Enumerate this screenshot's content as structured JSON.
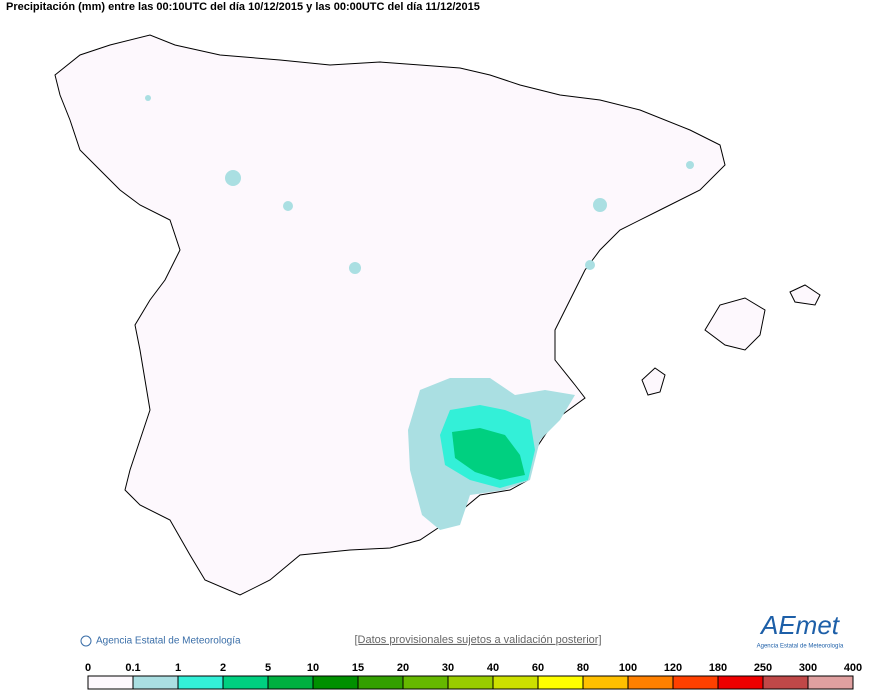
{
  "header": {
    "title": "Precipitación (mm) entre las 00:10UTC del día 10/12/2015 y las 00:00UTC del día 11/12/2015"
  },
  "footer": {
    "copyright": "Agencia Estatal de Meteorología",
    "note": "[Datos provisionales sujetos a validación posterior]"
  },
  "logo": {
    "name": "AEmet",
    "subtitle": "Agencia Estatal de Meteorología"
  },
  "legend": {
    "ticks": [
      0,
      0.1,
      1,
      2,
      5,
      10,
      15,
      20,
      30,
      40,
      60,
      80,
      100,
      120,
      180,
      250,
      300,
      400
    ],
    "colors": [
      "#fdf8fd",
      "#aadfe2",
      "#33f0d8",
      "#00d080",
      "#00b040",
      "#009000",
      "#33a000",
      "#66b800",
      "#99cc00",
      "#cce000",
      "#ffff00",
      "#ffc000",
      "#ff8000",
      "#ff4000",
      "#ee0000",
      "#c04848",
      "#e0a0a0"
    ]
  }
}
